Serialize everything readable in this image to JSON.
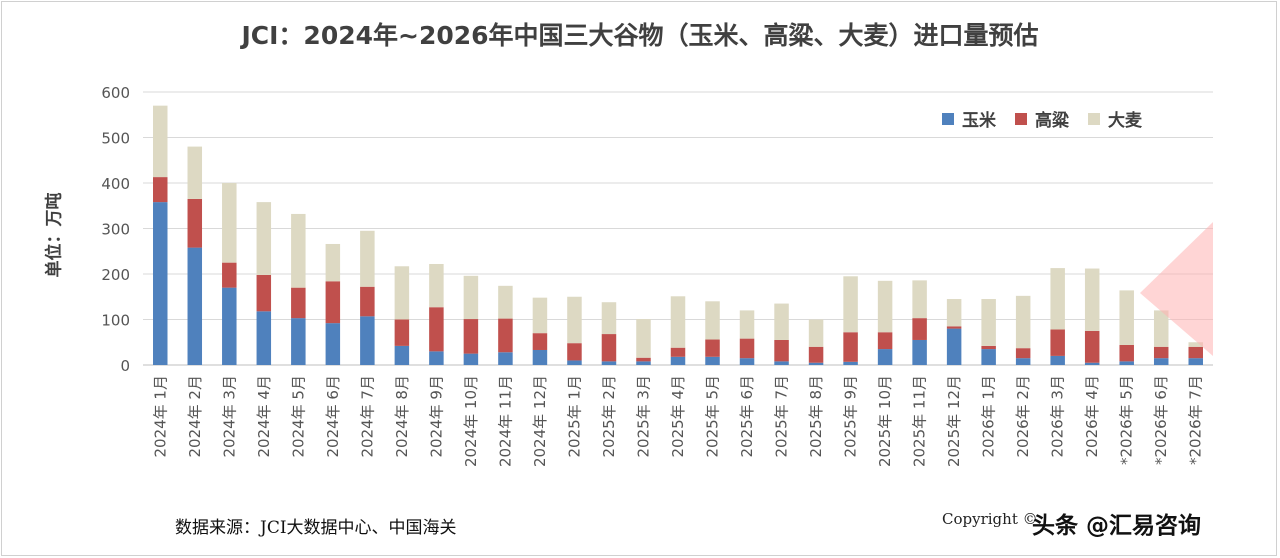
{
  "title": "JCI：2024年~2026年中国三大谷物（玉米、高粱、大麦）进口量预估",
  "source_note": "数据来源：JCI大数据中心、中国海关",
  "copyright": "Copyright ©",
  "watermark": "头条 @汇易咨询",
  "chart_data": {
    "type": "bar",
    "stacked": true,
    "title": "JCI：2024年~2026年中国三大谷物（玉米、高粱、大麦）进口量预估",
    "ylabel": "单位：万吨",
    "xlabel": "",
    "ylim": [
      0,
      600
    ],
    "yticks": [
      0,
      100,
      200,
      300,
      400,
      500,
      600
    ],
    "grid": true,
    "legend_position": "top-right",
    "categories": [
      "2024年 1月",
      "2024年 2月",
      "2024年 3月",
      "2024年 4月",
      "2024年 5月",
      "2024年 6月",
      "2024年 7月",
      "2024年 8月",
      "2024年 9月",
      "2024年 10月",
      "2024年 11月",
      "2024年 12月",
      "2025年 1月",
      "2025年 2月",
      "2025年 3月",
      "2025年 4月",
      "2025年 5月",
      "2025年 6月",
      "2025年 7月",
      "2025年 8月",
      "2025年 9月",
      "2025年 10月",
      "2025年 11月",
      "2025年 12月",
      "2026年 1月",
      "2026年 2月",
      "2026年 3月",
      "2026年 4月",
      "*2026年 5月",
      "*2026年 6月",
      "*2026年 7月"
    ],
    "series": [
      {
        "name": "玉米",
        "color": "#4f81bd",
        "values": [
          358,
          258,
          170,
          118,
          103,
          92,
          107,
          42,
          30,
          25,
          28,
          33,
          10,
          8,
          8,
          18,
          18,
          15,
          8,
          5,
          7,
          35,
          55,
          80,
          35,
          15,
          20,
          5,
          8,
          15,
          15
        ]
      },
      {
        "name": "高粱",
        "color": "#c0504d",
        "values": [
          55,
          107,
          55,
          80,
          67,
          92,
          65,
          58,
          97,
          76,
          74,
          37,
          38,
          60,
          8,
          20,
          38,
          43,
          47,
          35,
          65,
          37,
          48,
          5,
          7,
          22,
          58,
          70,
          36,
          25,
          25
        ]
      },
      {
        "name": "大麦",
        "color": "#ddd9c3",
        "values": [
          157,
          115,
          175,
          160,
          162,
          82,
          123,
          117,
          95,
          95,
          72,
          78,
          102,
          70,
          85,
          113,
          84,
          62,
          80,
          60,
          123,
          113,
          83,
          60,
          103,
          115,
          135,
          137,
          120,
          80,
          10
        ]
      }
    ]
  }
}
